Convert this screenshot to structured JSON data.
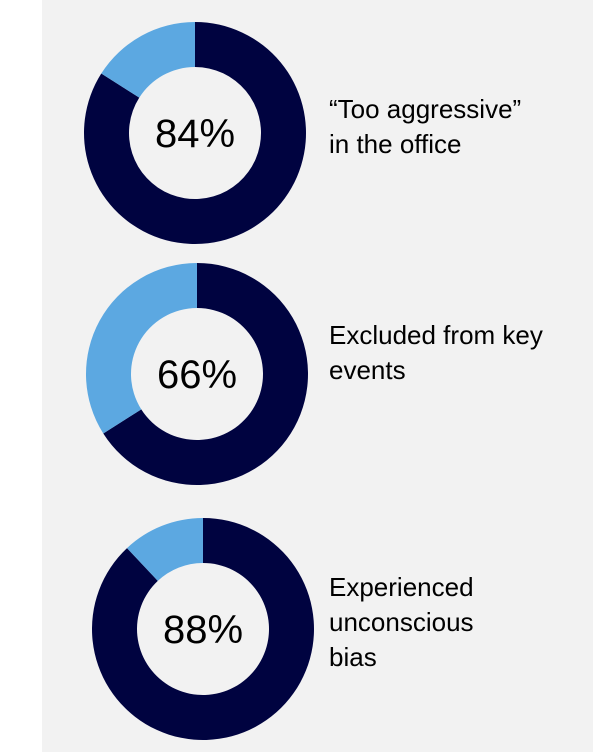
{
  "colors": {
    "background": "#f2f2f2",
    "primary": "#000340",
    "secondary": "#5ca8e1"
  },
  "chart_data": [
    {
      "type": "pie",
      "subtype": "donut",
      "value_label": "84%",
      "values": [
        84,
        16
      ],
      "label": "“Too aggressive”\nin the office"
    },
    {
      "type": "pie",
      "subtype": "donut",
      "value_label": "66%",
      "values": [
        66,
        34
      ],
      "label": "Excluded from key\nevents"
    },
    {
      "type": "pie",
      "subtype": "donut",
      "value_label": "88%",
      "values": [
        88,
        12
      ],
      "label": "Experienced\nunconscious\nbias"
    }
  ]
}
